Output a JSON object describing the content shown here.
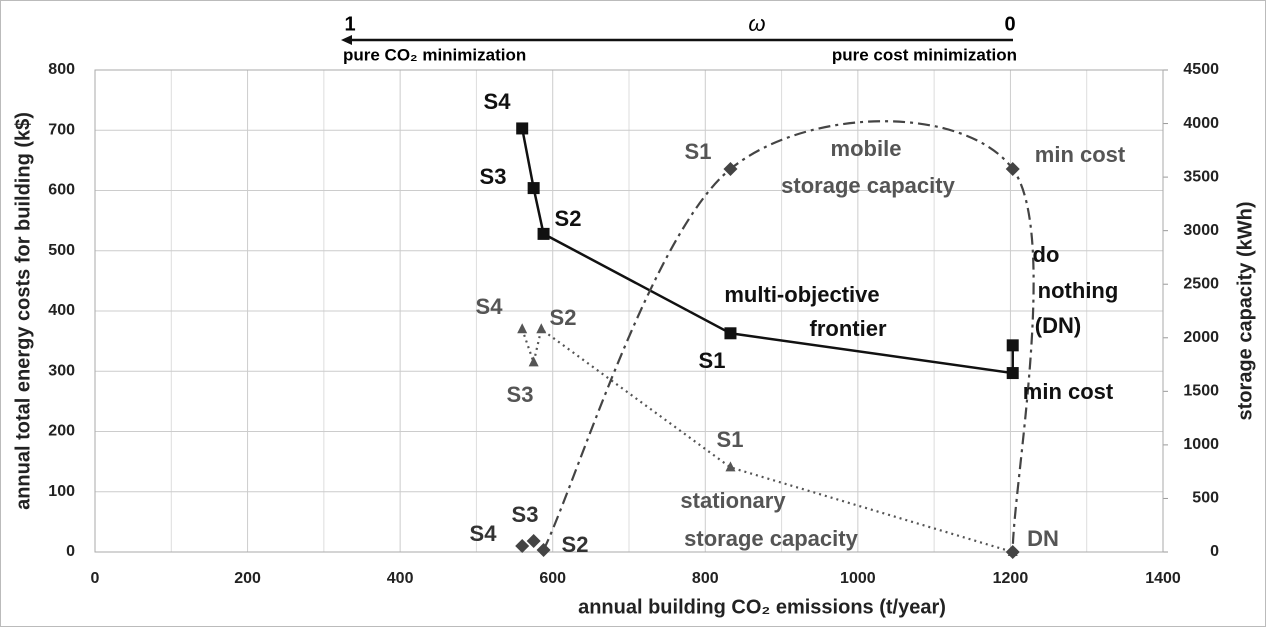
{
  "chart_data": {
    "type": "line",
    "x_label": "annual building CO₂ emissions (t/year)",
    "y_label": "annual total energy costs for building (k$)",
    "y2_label": "storage capacity (kWh)",
    "xlim": [
      0,
      1400
    ],
    "xticks": [
      0,
      200,
      400,
      600,
      800,
      1000,
      1200,
      1400
    ],
    "ylim": [
      0,
      800
    ],
    "yticks": [
      0,
      100,
      200,
      300,
      400,
      500,
      600,
      700,
      800
    ],
    "y2lim": [
      0,
      4500
    ],
    "y2ticks": [
      0,
      500,
      1000,
      1500,
      2000,
      2500,
      3000,
      3500,
      4000,
      4500
    ],
    "grid": true,
    "top_axis": {
      "label": "ω",
      "left": "1",
      "right": "0",
      "left_text": "pure CO₂ minimization",
      "right_text": "pure cost minimization"
    },
    "series": [
      {
        "name": "multi-objective frontier",
        "color": "#111111",
        "marker": "square",
        "line": "solid",
        "x": [
          560,
          575,
          588,
          833,
          1203,
          1203
        ],
        "values": [
          703,
          604,
          528,
          363,
          297,
          343
        ]
      },
      {
        "name": "stationary storage capacity",
        "color": "#555555",
        "marker": "triangle",
        "line": "dotted",
        "axis": "y2",
        "x": [
          560,
          575,
          585,
          833,
          1203
        ],
        "values": [
          2080,
          1770,
          2080,
          790,
          0
        ]
      },
      {
        "name": "mobile storage capacity",
        "color": "#444444",
        "marker": "diamond",
        "line": "dashdot",
        "axis": "y2",
        "x": [
          560,
          575,
          588,
          833,
          1203,
          1203
        ],
        "values": [
          56,
          103,
          19,
          3576,
          3576,
          0
        ]
      }
    ],
    "annotations": [
      "S4",
      "S3",
      "S2",
      "multi-objective",
      "frontier",
      "S1",
      "min cost",
      "do",
      "nothing",
      "(DN)",
      "S1",
      "mobile",
      "storage capacity",
      "min cost",
      "S4",
      "S2",
      "S3",
      "S1",
      "stationary",
      "storage capacity",
      "DN",
      "S4",
      "S3",
      "S2"
    ]
  }
}
